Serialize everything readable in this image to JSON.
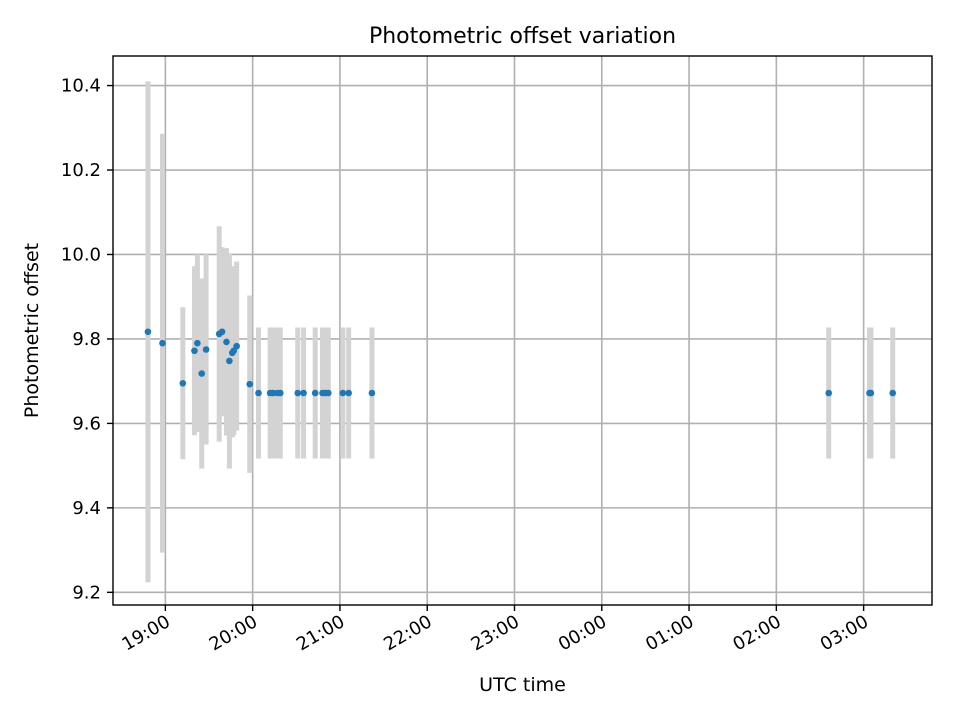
{
  "chart_data": {
    "type": "scatter",
    "title": "Photometric offset variation",
    "xlabel": "UTC time",
    "ylabel": "Photometric offset",
    "x_axis": {
      "type": "time",
      "range": [
        "18:24",
        "03:47"
      ],
      "ticks": [
        "19:00",
        "20:00",
        "21:00",
        "22:00",
        "23:00",
        "00:00",
        "01:00",
        "02:00",
        "03:00"
      ]
    },
    "y_axis": {
      "range": [
        9.17,
        10.47
      ],
      "ticks": [
        "9.2",
        "9.4",
        "9.6",
        "9.8",
        "10.0",
        "10.2",
        "10.4"
      ]
    },
    "grid": true,
    "legend": "none",
    "colors": {
      "point": "#1f77b4",
      "errorbar": "#d3d3d3"
    },
    "series": [
      {
        "marker": "dot",
        "error_bars": "vertical",
        "points": [
          {
            "x": "18:48",
            "y": 9.817,
            "err": 0.593
          },
          {
            "x": "18:58",
            "y": 9.79,
            "err": 0.496
          },
          {
            "x": "19:12",
            "y": 9.695,
            "err": 0.18
          },
          {
            "x": "19:20",
            "y": 9.772,
            "err": 0.2
          },
          {
            "x": "19:22",
            "y": 9.79,
            "err": 0.21
          },
          {
            "x": "19:25",
            "y": 9.718,
            "err": 0.225
          },
          {
            "x": "19:28",
            "y": 9.775,
            "err": 0.225
          },
          {
            "x": "19:37",
            "y": 9.812,
            "err": 0.255
          },
          {
            "x": "19:39",
            "y": 9.817,
            "err": 0.2
          },
          {
            "x": "19:42",
            "y": 9.793,
            "err": 0.222
          },
          {
            "x": "19:44",
            "y": 9.748,
            "err": 0.255
          },
          {
            "x": "19:46",
            "y": 9.767,
            "err": 0.2
          },
          {
            "x": "19:47",
            "y": 9.772,
            "err": 0.2
          },
          {
            "x": "19:49",
            "y": 9.783,
            "err": 0.2
          },
          {
            "x": "19:58",
            "y": 9.693,
            "err": 0.21
          },
          {
            "x": "20:04",
            "y": 9.672,
            "err": 0.155
          },
          {
            "x": "20:12",
            "y": 9.672,
            "err": 0.155
          },
          {
            "x": "20:14",
            "y": 9.672,
            "err": 0.155
          },
          {
            "x": "20:17",
            "y": 9.672,
            "err": 0.155
          },
          {
            "x": "20:19",
            "y": 9.672,
            "err": 0.155
          },
          {
            "x": "20:31",
            "y": 9.672,
            "err": 0.155
          },
          {
            "x": "20:35",
            "y": 9.672,
            "err": 0.155
          },
          {
            "x": "20:43",
            "y": 9.672,
            "err": 0.155
          },
          {
            "x": "20:48",
            "y": 9.672,
            "err": 0.155
          },
          {
            "x": "20:50",
            "y": 9.672,
            "err": 0.155
          },
          {
            "x": "20:52",
            "y": 9.672,
            "err": 0.155
          },
          {
            "x": "21:02",
            "y": 9.672,
            "err": 0.155
          },
          {
            "x": "21:06",
            "y": 9.672,
            "err": 0.155
          },
          {
            "x": "21:22",
            "y": 9.672,
            "err": 0.155
          },
          {
            "x": "02:36",
            "y": 9.672,
            "err": 0.155
          },
          {
            "x": "03:04",
            "y": 9.672,
            "err": 0.155
          },
          {
            "x": "03:05",
            "y": 9.672,
            "err": 0.155
          },
          {
            "x": "03:20",
            "y": 9.672,
            "err": 0.155
          }
        ]
      }
    ]
  }
}
